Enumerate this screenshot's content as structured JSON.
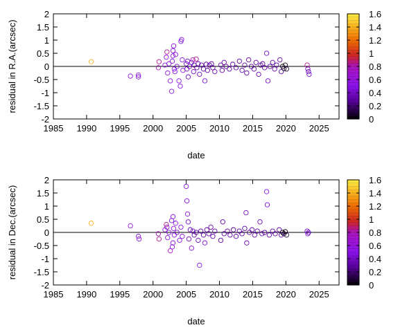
{
  "chart_data": [
    {
      "type": "scatter",
      "title": "",
      "xlabel": "date",
      "ylabel": "residual in R.A.(arcsec)",
      "xlim": [
        1985,
        2028
      ],
      "ylim": [
        -2,
        2
      ],
      "xticks": [
        "1985",
        "1990",
        "1995",
        "2000",
        "2005",
        "2010",
        "2015",
        "2020",
        "2025"
      ],
      "yticks": [
        "-2",
        "-1.5",
        "-1",
        "-0.5",
        "0",
        "0.5",
        "1",
        "1.5",
        "2"
      ],
      "colorbar": {
        "ticks": [
          "0",
          "0.2",
          "0.4",
          "0.6",
          "0.8",
          "1",
          "1.2",
          "1.4",
          "1.6"
        ],
        "range": [
          0,
          1.6
        ]
      },
      "zero_line": true,
      "points": [
        {
          "x": 1990.7,
          "y": 0.18,
          "c": 1.4
        },
        {
          "x": 1996.6,
          "y": -0.37,
          "c": 0.55
        },
        {
          "x": 1997.8,
          "y": -0.33,
          "c": 0.55
        },
        {
          "x": 1997.8,
          "y": -0.4,
          "c": 0.55
        },
        {
          "x": 2000.8,
          "y": -0.05,
          "c": 0.8
        },
        {
          "x": 2000.9,
          "y": 0.18,
          "c": 0.85
        },
        {
          "x": 2001.8,
          "y": 0.05,
          "c": 0.6
        },
        {
          "x": 2002.0,
          "y": 0.35,
          "c": 0.55
        },
        {
          "x": 2002.1,
          "y": 0.55,
          "c": 0.85
        },
        {
          "x": 2002.2,
          "y": -0.25,
          "c": 0.5
        },
        {
          "x": 2002.4,
          "y": 0.1,
          "c": 0.5
        },
        {
          "x": 2002.6,
          "y": -0.55,
          "c": 0.5
        },
        {
          "x": 2002.8,
          "y": -0.95,
          "c": 0.5
        },
        {
          "x": 2002.9,
          "y": 0.2,
          "c": 0.5
        },
        {
          "x": 2003.0,
          "y": 0.4,
          "c": 0.5
        },
        {
          "x": 2003.0,
          "y": 0.6,
          "c": 0.5
        },
        {
          "x": 2003.1,
          "y": 0.78,
          "c": 0.5
        },
        {
          "x": 2003.2,
          "y": -0.1,
          "c": 0.5
        },
        {
          "x": 2003.3,
          "y": -0.2,
          "c": 0.5
        },
        {
          "x": 2003.4,
          "y": 0.45,
          "c": 0.5
        },
        {
          "x": 2003.6,
          "y": 0.0,
          "c": 0.45
        },
        {
          "x": 2003.9,
          "y": -0.55,
          "c": 0.5
        },
        {
          "x": 2004.1,
          "y": -0.75,
          "c": 0.5
        },
        {
          "x": 2004.2,
          "y": 0.95,
          "c": 0.5
        },
        {
          "x": 2004.3,
          "y": 1.02,
          "c": 0.5
        },
        {
          "x": 2004.4,
          "y": 0.25,
          "c": 0.5
        },
        {
          "x": 2004.5,
          "y": -0.15,
          "c": 0.5
        },
        {
          "x": 2005.0,
          "y": 0.1,
          "c": 0.4
        },
        {
          "x": 2005.1,
          "y": -0.1,
          "c": 0.4
        },
        {
          "x": 2005.2,
          "y": 0.2,
          "c": 0.4
        },
        {
          "x": 2005.3,
          "y": -0.4,
          "c": 0.4
        },
        {
          "x": 2005.5,
          "y": 0.0,
          "c": 0.35
        },
        {
          "x": 2005.8,
          "y": 0.15,
          "c": 0.4
        },
        {
          "x": 2006.0,
          "y": 0.25,
          "c": 0.8
        },
        {
          "x": 2006.1,
          "y": -0.2,
          "c": 0.4
        },
        {
          "x": 2006.2,
          "y": 0.05,
          "c": 0.3
        },
        {
          "x": 2006.5,
          "y": 0.28,
          "c": 0.85
        },
        {
          "x": 2006.6,
          "y": -0.05,
          "c": 0.3
        },
        {
          "x": 2006.8,
          "y": 0.1,
          "c": 0.35
        },
        {
          "x": 2007.0,
          "y": -0.3,
          "c": 0.4
        },
        {
          "x": 2007.3,
          "y": 0.05,
          "c": 0.3
        },
        {
          "x": 2007.6,
          "y": -0.1,
          "c": 0.3
        },
        {
          "x": 2007.8,
          "y": -0.55,
          "c": 0.45
        },
        {
          "x": 2008.0,
          "y": 0.08,
          "c": 0.3
        },
        {
          "x": 2008.2,
          "y": -0.15,
          "c": 0.3
        },
        {
          "x": 2008.5,
          "y": 0.05,
          "c": 0.3
        },
        {
          "x": 2008.8,
          "y": 0.1,
          "c": 0.35
        },
        {
          "x": 2009.0,
          "y": -0.05,
          "c": 0.3
        },
        {
          "x": 2009.3,
          "y": -0.2,
          "c": 0.35
        },
        {
          "x": 2010.2,
          "y": 0.05,
          "c": 0.3
        },
        {
          "x": 2010.4,
          "y": -0.15,
          "c": 0.3
        },
        {
          "x": 2010.7,
          "y": 0.15,
          "c": 0.3
        },
        {
          "x": 2011.0,
          "y": 0.0,
          "c": 0.3
        },
        {
          "x": 2011.5,
          "y": -0.1,
          "c": 0.3
        },
        {
          "x": 2012.0,
          "y": 0.08,
          "c": 0.3
        },
        {
          "x": 2012.5,
          "y": -0.05,
          "c": 0.3
        },
        {
          "x": 2013.0,
          "y": 0.2,
          "c": 0.3
        },
        {
          "x": 2013.4,
          "y": -0.15,
          "c": 0.3
        },
        {
          "x": 2013.8,
          "y": 0.05,
          "c": 0.3
        },
        {
          "x": 2014.1,
          "y": -0.25,
          "c": 0.3
        },
        {
          "x": 2014.4,
          "y": 0.25,
          "c": 0.3
        },
        {
          "x": 2014.8,
          "y": 0.0,
          "c": 0.3
        },
        {
          "x": 2015.2,
          "y": -0.1,
          "c": 0.3
        },
        {
          "x": 2015.5,
          "y": 0.15,
          "c": 0.3
        },
        {
          "x": 2015.9,
          "y": -0.3,
          "c": 0.35
        },
        {
          "x": 2016.2,
          "y": 0.05,
          "c": 0.3
        },
        {
          "x": 2016.5,
          "y": 0.1,
          "c": 0.3
        },
        {
          "x": 2016.8,
          "y": -0.05,
          "c": 0.3
        },
        {
          "x": 2017.1,
          "y": 0.5,
          "c": 0.4
        },
        {
          "x": 2017.3,
          "y": -0.55,
          "c": 0.4
        },
        {
          "x": 2017.6,
          "y": 0.0,
          "c": 0.3
        },
        {
          "x": 2018.0,
          "y": 0.15,
          "c": 0.3
        },
        {
          "x": 2018.3,
          "y": -0.1,
          "c": 0.3
        },
        {
          "x": 2018.6,
          "y": 0.05,
          "c": 0.3
        },
        {
          "x": 2019.1,
          "y": 0.25,
          "c": 0.3
        },
        {
          "x": 2019.3,
          "y": -0.2,
          "c": 0.3
        },
        {
          "x": 2019.5,
          "y": 0.0,
          "c": 0.05
        },
        {
          "x": 2019.7,
          "y": -0.08,
          "c": 0.05
        },
        {
          "x": 2019.9,
          "y": 0.05,
          "c": 0.05
        },
        {
          "x": 2020.1,
          "y": -0.1,
          "c": 0.1
        },
        {
          "x": 2023.2,
          "y": 0.05,
          "c": 0.85
        },
        {
          "x": 2023.3,
          "y": -0.1,
          "c": 0.4
        },
        {
          "x": 2023.4,
          "y": -0.2,
          "c": 0.4
        },
        {
          "x": 2023.5,
          "y": -0.3,
          "c": 0.4
        }
      ]
    },
    {
      "type": "scatter",
      "title": "",
      "xlabel": "date",
      "ylabel": "residual in Dec.(arcsec)",
      "xlim": [
        1985,
        2028
      ],
      "ylim": [
        -2,
        2
      ],
      "xticks": [
        "1985",
        "1990",
        "1995",
        "2000",
        "2005",
        "2010",
        "2015",
        "2020",
        "2025"
      ],
      "yticks": [
        "-2",
        "-1.5",
        "-1",
        "-0.5",
        "0",
        "0.5",
        "1",
        "1.5",
        "2"
      ],
      "colorbar": {
        "ticks": [
          "0",
          "0.2",
          "0.4",
          "0.6",
          "0.8",
          "1",
          "1.2",
          "1.4",
          "1.6"
        ],
        "range": [
          0,
          1.6
        ]
      },
      "zero_line": true,
      "points": [
        {
          "x": 1990.7,
          "y": 0.35,
          "c": 1.4
        },
        {
          "x": 1996.6,
          "y": 0.25,
          "c": 0.55
        },
        {
          "x": 1997.8,
          "y": -0.15,
          "c": 0.55
        },
        {
          "x": 1997.9,
          "y": -0.25,
          "c": 0.55
        },
        {
          "x": 2000.8,
          "y": -0.05,
          "c": 0.8
        },
        {
          "x": 2000.9,
          "y": -0.25,
          "c": 0.85
        },
        {
          "x": 2001.8,
          "y": 0.1,
          "c": 0.6
        },
        {
          "x": 2002.0,
          "y": 0.3,
          "c": 0.85
        },
        {
          "x": 2002.1,
          "y": 0.2,
          "c": 0.55
        },
        {
          "x": 2002.2,
          "y": -0.2,
          "c": 0.5
        },
        {
          "x": 2002.4,
          "y": 0.0,
          "c": 0.5
        },
        {
          "x": 2002.6,
          "y": -0.7,
          "c": 0.8
        },
        {
          "x": 2002.8,
          "y": 0.45,
          "c": 0.5
        },
        {
          "x": 2002.9,
          "y": -0.55,
          "c": 0.5
        },
        {
          "x": 2003.0,
          "y": 0.6,
          "c": 0.5
        },
        {
          "x": 2003.0,
          "y": -0.4,
          "c": 0.5
        },
        {
          "x": 2003.1,
          "y": 0.15,
          "c": 0.5
        },
        {
          "x": 2003.2,
          "y": -0.1,
          "c": 0.5
        },
        {
          "x": 2003.4,
          "y": 0.35,
          "c": 0.5
        },
        {
          "x": 2003.6,
          "y": 0.0,
          "c": 0.45
        },
        {
          "x": 2004.0,
          "y": -0.3,
          "c": 0.5
        },
        {
          "x": 2004.2,
          "y": 0.2,
          "c": 0.5
        },
        {
          "x": 2004.4,
          "y": -0.15,
          "c": 0.5
        },
        {
          "x": 2005.0,
          "y": 1.75,
          "c": 0.5
        },
        {
          "x": 2005.1,
          "y": 1.2,
          "c": 0.5
        },
        {
          "x": 2005.2,
          "y": 0.7,
          "c": 0.5
        },
        {
          "x": 2005.3,
          "y": 0.4,
          "c": 0.4
        },
        {
          "x": 2005.4,
          "y": -0.25,
          "c": 0.4
        },
        {
          "x": 2005.6,
          "y": 0.1,
          "c": 0.35
        },
        {
          "x": 2005.8,
          "y": -0.6,
          "c": 0.5
        },
        {
          "x": 2006.0,
          "y": 0.05,
          "c": 0.4
        },
        {
          "x": 2006.2,
          "y": -0.1,
          "c": 0.3
        },
        {
          "x": 2006.5,
          "y": 0.0,
          "c": 0.3
        },
        {
          "x": 2006.8,
          "y": -0.3,
          "c": 0.35
        },
        {
          "x": 2007.0,
          "y": -1.25,
          "c": 0.5
        },
        {
          "x": 2007.2,
          "y": 0.05,
          "c": 0.3
        },
        {
          "x": 2007.6,
          "y": -0.1,
          "c": 0.3
        },
        {
          "x": 2007.8,
          "y": -0.4,
          "c": 0.45
        },
        {
          "x": 2008.1,
          "y": 0.1,
          "c": 0.3
        },
        {
          "x": 2008.4,
          "y": -0.05,
          "c": 0.3
        },
        {
          "x": 2008.7,
          "y": 0.2,
          "c": 0.35
        },
        {
          "x": 2009.0,
          "y": -0.15,
          "c": 0.3
        },
        {
          "x": 2009.3,
          "y": 0.05,
          "c": 0.3
        },
        {
          "x": 2010.2,
          "y": -0.3,
          "c": 0.3
        },
        {
          "x": 2010.5,
          "y": 0.4,
          "c": 0.3
        },
        {
          "x": 2010.7,
          "y": -0.05,
          "c": 0.3
        },
        {
          "x": 2011.2,
          "y": 0.05,
          "c": 0.3
        },
        {
          "x": 2011.6,
          "y": -0.1,
          "c": 0.3
        },
        {
          "x": 2012.1,
          "y": 0.1,
          "c": 0.3
        },
        {
          "x": 2012.5,
          "y": -0.15,
          "c": 0.3
        },
        {
          "x": 2013.0,
          "y": 0.05,
          "c": 0.3
        },
        {
          "x": 2013.4,
          "y": -0.05,
          "c": 0.3
        },
        {
          "x": 2013.8,
          "y": 0.15,
          "c": 0.3
        },
        {
          "x": 2014.0,
          "y": 0.75,
          "c": 0.4
        },
        {
          "x": 2014.1,
          "y": -0.4,
          "c": 0.35
        },
        {
          "x": 2014.5,
          "y": 0.0,
          "c": 0.3
        },
        {
          "x": 2014.9,
          "y": 0.1,
          "c": 0.3
        },
        {
          "x": 2015.3,
          "y": -0.1,
          "c": 0.3
        },
        {
          "x": 2015.7,
          "y": 0.05,
          "c": 0.3
        },
        {
          "x": 2016.1,
          "y": 0.4,
          "c": 0.35
        },
        {
          "x": 2016.4,
          "y": -0.05,
          "c": 0.3
        },
        {
          "x": 2016.8,
          "y": 0.0,
          "c": 0.3
        },
        {
          "x": 2017.1,
          "y": 1.55,
          "c": 0.5
        },
        {
          "x": 2017.2,
          "y": 1.05,
          "c": 0.45
        },
        {
          "x": 2017.5,
          "y": -0.1,
          "c": 0.3
        },
        {
          "x": 2018.0,
          "y": 0.05,
          "c": 0.3
        },
        {
          "x": 2018.4,
          "y": -0.05,
          "c": 0.3
        },
        {
          "x": 2019.0,
          "y": 0.1,
          "c": 0.3
        },
        {
          "x": 2019.3,
          "y": -0.1,
          "c": 0.3
        },
        {
          "x": 2019.5,
          "y": 0.0,
          "c": 0.05
        },
        {
          "x": 2019.7,
          "y": -0.05,
          "c": 0.05
        },
        {
          "x": 2019.9,
          "y": 0.03,
          "c": 0.05
        },
        {
          "x": 2020.1,
          "y": -0.1,
          "c": 0.1
        },
        {
          "x": 2023.2,
          "y": 0.05,
          "c": 0.4
        },
        {
          "x": 2023.3,
          "y": -0.05,
          "c": 0.4
        },
        {
          "x": 2023.4,
          "y": 0.0,
          "c": 0.4
        }
      ]
    }
  ]
}
